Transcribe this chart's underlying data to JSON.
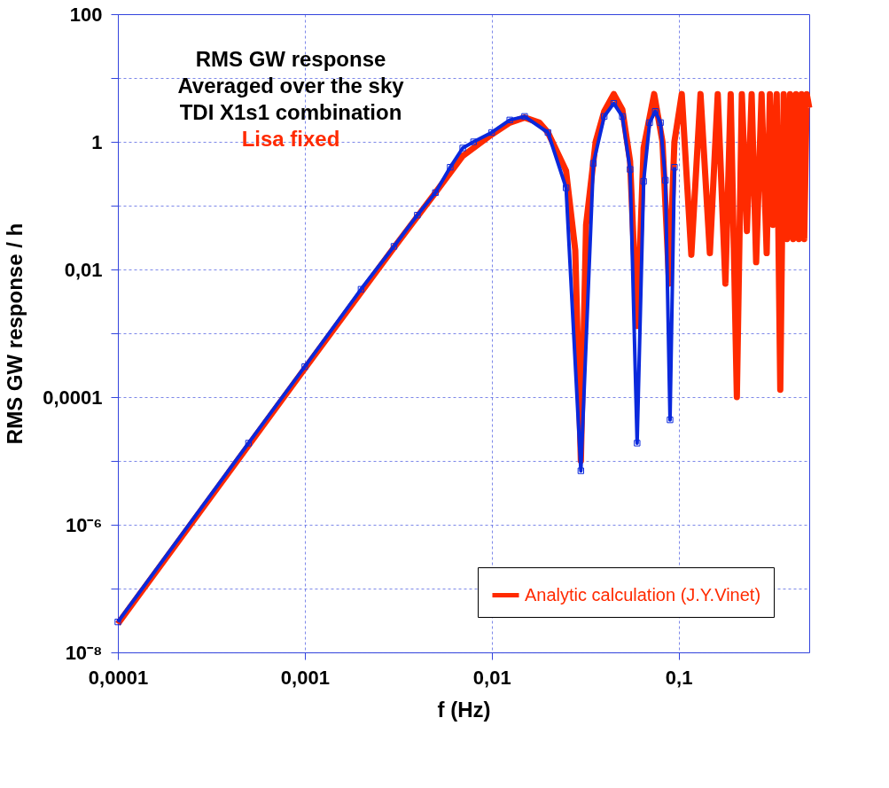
{
  "chart_data": {
    "type": "line",
    "title": "RMS GW response",
    "annotations": [
      "Averaged over the sky",
      "TDI X1s1 combination",
      "Lisa fixed"
    ],
    "xlabel": "f (Hz)",
    "ylabel": "RMS GW response / h",
    "log": "xy",
    "grid": true,
    "legend": "bottom right",
    "line_style": "solid",
    "xlim": [
      0.0001,
      0.5
    ],
    "ylim": [
      1e-08,
      100
    ],
    "xticks": [
      {
        "value": 0.0001,
        "label": "0,0001"
      },
      {
        "value": 0.001,
        "label": "0,001"
      },
      {
        "value": 0.01,
        "label": "0,01"
      },
      {
        "value": 0.1,
        "label": "0,1"
      }
    ],
    "yticks": [
      {
        "value": 1e-08,
        "label": "10⁻⁸"
      },
      {
        "value": 1e-07,
        "label": null
      },
      {
        "value": 1e-06,
        "label": "10⁻⁶"
      },
      {
        "value": 1e-05,
        "label": null
      },
      {
        "value": 0.0001,
        "label": "0,0001"
      },
      {
        "value": 0.001,
        "label": null
      },
      {
        "value": 0.01,
        "label": "0,01"
      },
      {
        "value": 0.1,
        "label": null
      },
      1,
      {
        "value": 10,
        "label": null
      },
      100
    ],
    "series": [
      {
        "name": "Analytic calculation (J.Y.Vinet)",
        "color": "#ff2a00",
        "marker": "none",
        "x": [
          0.0001,
          0.001,
          0.003,
          0.005,
          0.007,
          0.01,
          0.0125,
          0.015,
          0.018,
          0.02,
          0.025,
          0.028,
          0.03,
          0.032,
          0.036,
          0.04,
          0.045,
          0.05,
          0.055,
          0.06,
          0.065,
          0.074,
          0.082,
          0.089,
          0.095,
          0.104,
          0.117,
          0.131,
          0.147,
          0.162,
          0.178,
          0.19,
          0.205,
          0.218,
          0.232,
          0.246,
          0.26,
          0.278,
          0.296,
          0.308,
          0.32,
          0.335,
          0.35,
          0.365,
          0.38,
          0.395,
          0.41,
          0.425,
          0.44,
          0.455,
          0.47,
          0.485,
          0.5
        ],
        "values": [
          2.8e-08,
          0.00028,
          0.022,
          0.16,
          0.6,
          1.3,
          2,
          2.4,
          2,
          1.4,
          0.35,
          0.02,
          1e-05,
          0.05,
          1,
          3,
          5.6,
          3.2,
          0.5,
          0.0013,
          0.8,
          5.6,
          1,
          0.006,
          1,
          5.6,
          0.017,
          5.6,
          0.018,
          5.6,
          0.006,
          5.6,
          0.0001,
          5.6,
          0.04,
          5.6,
          0.013,
          5.6,
          0.018,
          5.6,
          0.05,
          5.6,
          0.00013,
          5.6,
          0.03,
          5.6,
          0.03,
          5.6,
          0.03,
          5.6,
          0.03,
          5.6,
          3.4
        ]
      },
      {
        "color": "#0a28dc",
        "marker": "square",
        "x": [
          0.0001,
          0.0005,
          0.001,
          0.002,
          0.003,
          0.004,
          0.005,
          0.006,
          0.007,
          0.008,
          0.01,
          0.0125,
          0.015,
          0.02,
          0.025,
          0.03,
          0.035,
          0.04,
          0.045,
          0.05,
          0.055,
          0.06,
          0.065,
          0.07,
          0.075,
          0.08,
          0.085,
          0.09,
          0.095
        ],
        "values": [
          3e-08,
          1.9e-05,
          0.0003,
          0.0049,
          0.023,
          0.071,
          0.16,
          0.4,
          0.8,
          1,
          1.4,
          2.2,
          2.5,
          1.4,
          0.19,
          7e-06,
          0.46,
          2.5,
          4,
          2.5,
          0.37,
          1.9e-05,
          0.24,
          2,
          3,
          2,
          0.25,
          4.4e-05,
          0.4
        ]
      }
    ]
  }
}
